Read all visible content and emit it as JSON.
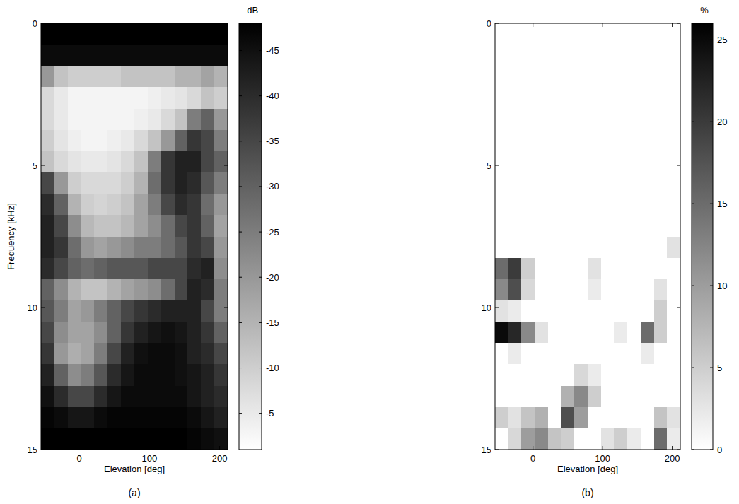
{
  "chart_data": [
    {
      "type": "heatmap",
      "title": "(a)",
      "x_label": "Elevation [deg]",
      "y_label": "Frequency [kHz]",
      "x": [
        -45,
        -26,
        -7,
        12,
        31,
        50,
        69,
        88,
        107,
        126,
        145,
        164,
        183,
        202
      ],
      "y": [
        0.375,
        1.125,
        1.875,
        2.625,
        3.375,
        4.125,
        4.875,
        5.625,
        6.375,
        7.125,
        7.875,
        8.625,
        9.375,
        10.125,
        10.875,
        11.625,
        12.375,
        13.125,
        13.875,
        14.625
      ],
      "values": [
        [
          -48,
          -48,
          -48,
          -48,
          -48,
          -48,
          -48,
          -48,
          -48,
          -48,
          -48,
          -48,
          -48,
          -48
        ],
        [
          -46,
          -46,
          -46,
          -46,
          -46,
          -46,
          -46,
          -46,
          -46,
          -46,
          -46,
          -46,
          -46,
          -46
        ],
        [
          -20,
          -12,
          -10,
          -10,
          -10,
          -10,
          -12,
          -12,
          -12,
          -12,
          -15,
          -15,
          -18,
          -15
        ],
        [
          -8,
          -5,
          -3,
          -3,
          -3,
          -3,
          -3,
          -3,
          -4,
          -5,
          -6,
          -8,
          -12,
          -10
        ],
        [
          -8,
          -5,
          -3,
          -3,
          -3,
          -3,
          -3,
          -4,
          -5,
          -8,
          -12,
          -25,
          -30,
          -20
        ],
        [
          -10,
          -6,
          -4,
          -3,
          -3,
          -4,
          -5,
          -8,
          -12,
          -20,
          -30,
          -38,
          -35,
          -25
        ],
        [
          -12,
          -8,
          -6,
          -5,
          -5,
          -6,
          -8,
          -12,
          -25,
          -38,
          -42,
          -42,
          -35,
          -30
        ],
        [
          -35,
          -20,
          -10,
          -8,
          -8,
          -8,
          -10,
          -15,
          -28,
          -38,
          -42,
          -40,
          -32,
          -25
        ],
        [
          -40,
          -30,
          -15,
          -10,
          -9,
          -10,
          -12,
          -18,
          -25,
          -35,
          -40,
          -38,
          -28,
          -20
        ],
        [
          -42,
          -35,
          -22,
          -14,
          -12,
          -12,
          -14,
          -18,
          -22,
          -28,
          -35,
          -38,
          -30,
          -18
        ],
        [
          -42,
          -38,
          -28,
          -20,
          -18,
          -20,
          -22,
          -25,
          -25,
          -28,
          -32,
          -38,
          -35,
          -20
        ],
        [
          -40,
          -35,
          -30,
          -28,
          -30,
          -32,
          -32,
          -32,
          -35,
          -35,
          -35,
          -40,
          -42,
          -22
        ],
        [
          -30,
          -22,
          -15,
          -12,
          -12,
          -15,
          -18,
          -20,
          -22,
          -28,
          -35,
          -42,
          -40,
          -25
        ],
        [
          -32,
          -25,
          -18,
          -20,
          -25,
          -30,
          -35,
          -38,
          -40,
          -42,
          -42,
          -42,
          -35,
          -25
        ],
        [
          -35,
          -22,
          -18,
          -18,
          -22,
          -30,
          -38,
          -42,
          -44,
          -45,
          -44,
          -42,
          -38,
          -30
        ],
        [
          -38,
          -20,
          -16,
          -18,
          -25,
          -35,
          -42,
          -45,
          -46,
          -46,
          -45,
          -42,
          -40,
          -35
        ],
        [
          -42,
          -30,
          -22,
          -25,
          -32,
          -40,
          -44,
          -46,
          -46,
          -46,
          -45,
          -44,
          -42,
          -38
        ],
        [
          -45,
          -40,
          -35,
          -35,
          -40,
          -44,
          -46,
          -46,
          -46,
          -46,
          -46,
          -44,
          -42,
          -40
        ],
        [
          -47,
          -46,
          -44,
          -44,
          -46,
          -47,
          -47,
          -47,
          -47,
          -47,
          -47,
          -46,
          -44,
          -42
        ],
        [
          -48,
          -48,
          -48,
          -48,
          -48,
          -48,
          -48,
          -48,
          -48,
          -48,
          -48,
          -47,
          -46,
          -45
        ]
      ],
      "xlim": [
        -54.5,
        211.5
      ],
      "xticks": [
        0,
        100,
        200
      ],
      "ylim": [
        15,
        0
      ],
      "yticks": [
        0,
        5,
        10,
        15
      ],
      "colors": [
        "#000000",
        "#ffffff"
      ],
      "colorbar": {
        "label": "dB",
        "range": [
          -48,
          -1
        ],
        "ticks": [
          -45,
          -40,
          -35,
          -30,
          -25,
          -20,
          -15,
          -10,
          -5
        ]
      }
    },
    {
      "type": "heatmap",
      "title": "(b)",
      "x_label": "Elevation [deg]",
      "x": [
        -45,
        -26,
        -7,
        12,
        31,
        50,
        69,
        88,
        107,
        126,
        145,
        164,
        183,
        202
      ],
      "y": [
        0.375,
        1.125,
        1.875,
        2.625,
        3.375,
        4.125,
        4.875,
        5.625,
        6.375,
        7.125,
        7.875,
        8.625,
        9.375,
        10.125,
        10.875,
        11.625,
        12.375,
        13.125,
        13.875,
        14.625
      ],
      "values": [
        [
          0,
          0,
          0,
          0,
          0,
          0,
          0,
          0,
          0,
          0,
          0,
          0,
          0,
          0
        ],
        [
          0,
          0,
          0,
          0,
          0,
          0,
          0,
          0,
          0,
          0,
          0,
          0,
          0,
          0
        ],
        [
          0,
          0,
          0,
          0,
          0,
          0,
          0,
          0,
          0,
          0,
          0,
          0,
          0,
          0
        ],
        [
          0,
          0,
          0,
          0,
          0,
          0,
          0,
          0,
          0,
          0,
          0,
          0,
          0,
          0
        ],
        [
          0,
          0,
          0,
          0,
          0,
          0,
          0,
          0,
          0,
          0,
          0,
          0,
          0,
          0
        ],
        [
          0,
          0,
          0,
          0,
          0,
          0,
          0,
          0,
          0,
          0,
          0,
          0,
          0,
          0
        ],
        [
          0,
          0,
          0,
          0,
          0,
          0,
          0,
          0,
          0,
          0,
          0,
          0,
          0,
          0
        ],
        [
          0,
          0,
          0,
          0,
          0,
          0,
          0,
          0,
          0,
          0,
          0,
          0,
          0,
          0
        ],
        [
          0,
          0,
          0,
          0,
          0,
          0,
          0,
          0,
          0,
          0,
          0,
          0,
          0,
          0
        ],
        [
          0,
          0,
          0,
          0,
          0,
          0,
          0,
          0,
          0,
          0,
          0,
          0,
          0,
          0
        ],
        [
          0,
          0,
          0,
          0,
          0,
          0,
          0,
          0,
          0,
          0,
          0,
          0,
          0,
          3
        ],
        [
          15,
          20,
          5,
          0,
          0,
          0,
          0,
          3,
          0,
          0,
          0,
          0,
          0,
          0
        ],
        [
          12,
          18,
          4,
          0,
          0,
          0,
          0,
          2,
          0,
          0,
          0,
          0,
          3,
          0
        ],
        [
          3,
          2,
          0,
          0,
          0,
          0,
          0,
          0,
          0,
          0,
          0,
          0,
          5,
          0
        ],
        [
          25,
          22,
          12,
          3,
          0,
          0,
          0,
          0,
          0,
          2,
          0,
          15,
          5,
          0
        ],
        [
          0,
          2,
          0,
          0,
          0,
          0,
          0,
          0,
          0,
          0,
          0,
          2,
          0,
          0
        ],
        [
          0,
          0,
          0,
          0,
          0,
          0,
          4,
          2,
          0,
          0,
          0,
          0,
          0,
          0
        ],
        [
          0,
          0,
          0,
          0,
          0,
          8,
          12,
          5,
          0,
          0,
          0,
          0,
          0,
          0
        ],
        [
          5,
          3,
          6,
          8,
          0,
          18,
          10,
          0,
          0,
          0,
          0,
          0,
          6,
          3
        ],
        [
          0,
          4,
          10,
          12,
          6,
          5,
          0,
          0,
          3,
          5,
          2,
          0,
          15,
          2
        ]
      ],
      "xlim": [
        -54.5,
        211.5
      ],
      "xticks": [
        0,
        100,
        200
      ],
      "ylim": [
        15,
        0
      ],
      "yticks": [
        0,
        5,
        10,
        15
      ],
      "colors": [
        "#ffffff",
        "#000000"
      ],
      "colorbar": {
        "label": "%",
        "range": [
          0,
          26
        ],
        "ticks": [
          0,
          5,
          10,
          15,
          20,
          25
        ]
      }
    }
  ]
}
